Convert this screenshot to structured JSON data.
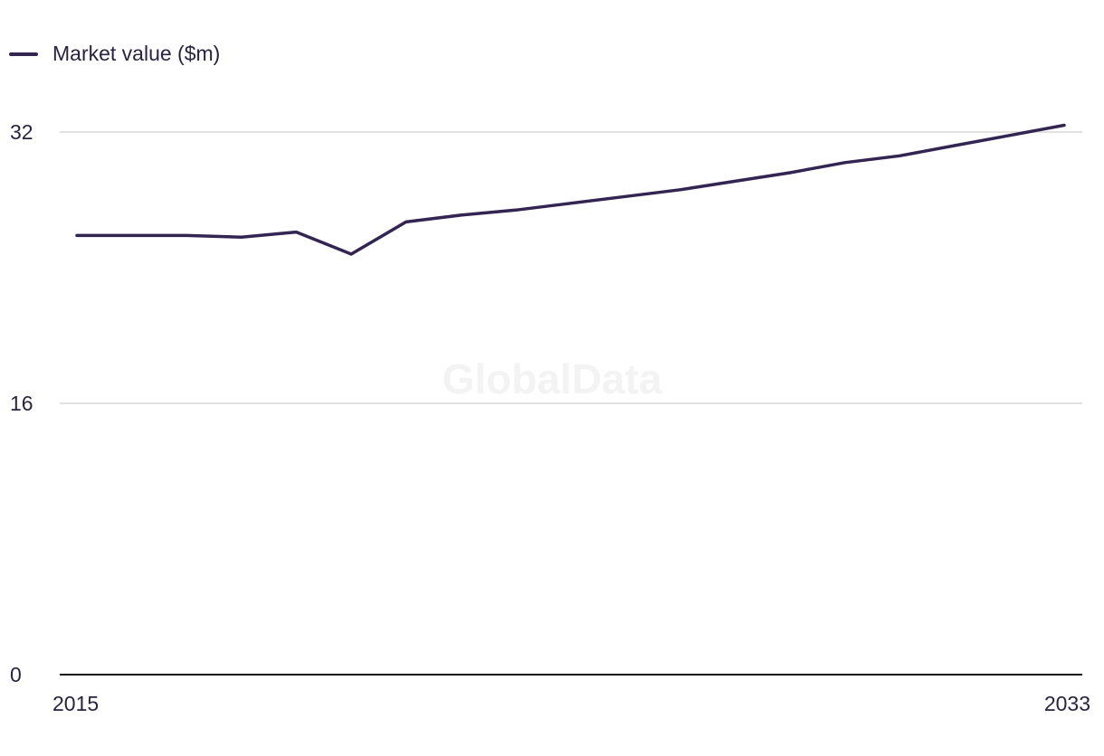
{
  "legend": {
    "label": "Market value ($m)"
  },
  "watermark": "GlobalData",
  "colors": {
    "line": "#332551",
    "grid": "#d9d9d9",
    "axis": "#111111",
    "text": "#2a2340"
  },
  "chart_data": {
    "type": "line",
    "title": "",
    "xlabel": "",
    "ylabel": "",
    "x": [
      2015,
      2016,
      2017,
      2018,
      2019,
      2020,
      2021,
      2022,
      2023,
      2024,
      2025,
      2026,
      2027,
      2028,
      2029,
      2030,
      2031,
      2032,
      2033
    ],
    "series": [
      {
        "name": "Market value ($m)",
        "values": [
          25.9,
          25.9,
          25.9,
          25.8,
          26.1,
          24.8,
          26.7,
          27.1,
          27.4,
          27.8,
          28.2,
          28.6,
          29.1,
          29.6,
          30.2,
          30.6,
          31.2,
          31.8,
          32.4
        ]
      }
    ],
    "ylim": [
      0,
      32
    ],
    "yticks": [
      "0",
      "16",
      "32"
    ],
    "xticks": [
      "2015",
      "2033"
    ],
    "grid": true,
    "legend_position": "top-left"
  }
}
